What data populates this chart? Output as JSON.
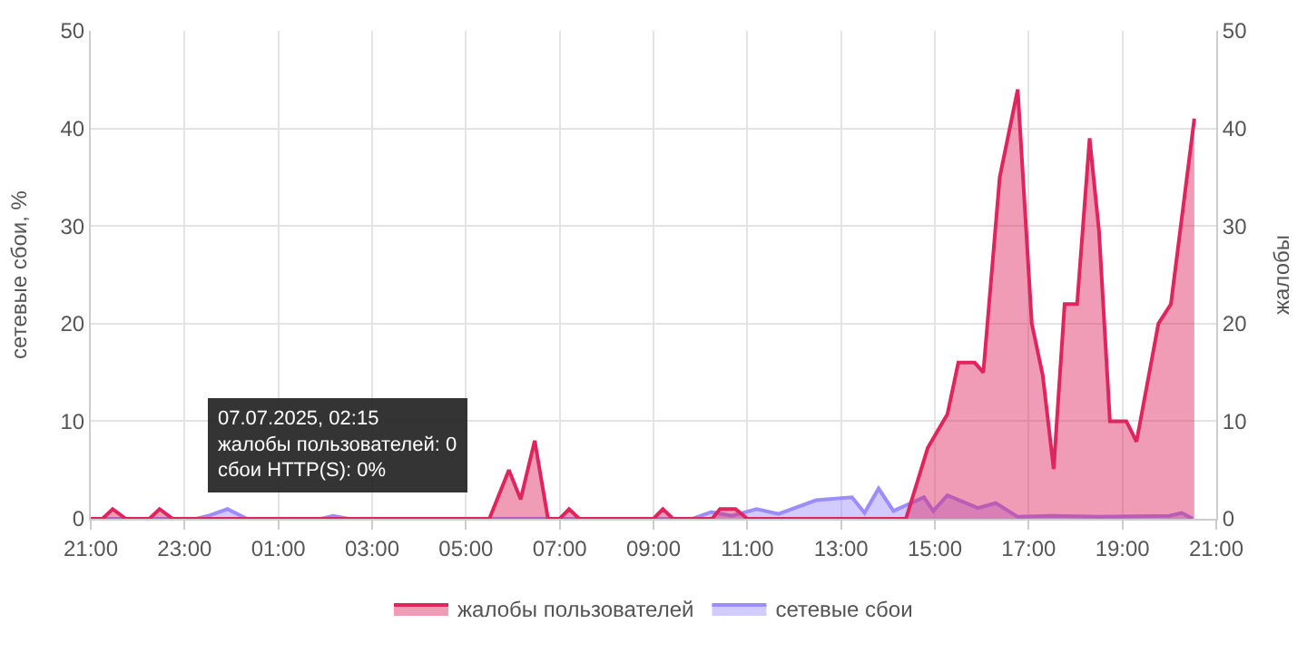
{
  "chart_data": {
    "type": "area",
    "ylabel": "сетевые сбои, %",
    "y2label": "жалобы",
    "xlim": [
      "2025-07-06T21:00",
      "2025-07-07T21:00"
    ],
    "xticks": [
      {
        "value": "2025-07-06T21:00",
        "label": "21:00"
      },
      {
        "value": "2025-07-06T23:00",
        "label": "23:00"
      },
      {
        "value": "2025-07-07T01:00",
        "label": "01:00"
      },
      {
        "value": "2025-07-07T03:00",
        "label": "03:00"
      },
      {
        "value": "2025-07-07T05:00",
        "label": "05:00"
      },
      {
        "value": "2025-07-07T07:00",
        "label": "07:00"
      },
      {
        "value": "2025-07-07T09:00",
        "label": "09:00"
      },
      {
        "value": "2025-07-07T11:00",
        "label": "11:00"
      },
      {
        "value": "2025-07-07T13:00",
        "label": "13:00"
      },
      {
        "value": "2025-07-07T15:00",
        "label": "15:00"
      },
      {
        "value": "2025-07-07T17:00",
        "label": "17:00"
      },
      {
        "value": "2025-07-07T19:00",
        "label": "19:00"
      },
      {
        "value": "2025-07-07T21:00",
        "label": "21:00"
      }
    ],
    "ylim": [
      0,
      50
    ],
    "yticks": [
      0,
      10,
      20,
      30,
      40,
      50
    ],
    "y2lim": [
      0,
      50
    ],
    "y2ticks": [
      0,
      10,
      20,
      30,
      40,
      50
    ],
    "grid": true,
    "legend": "bottom",
    "series": [
      {
        "name": "сетевые сбои",
        "color": "#9b8cff",
        "x": [
          "2025-07-06T21:00",
          "2025-07-06T23:15",
          "2025-07-06T23:30",
          "2025-07-06T23:55",
          "2025-07-07T00:20",
          "2025-07-07T01:55",
          "2025-07-07T02:10",
          "2025-07-07T02:30",
          "2025-07-07T09:50",
          "2025-07-07T10:14",
          "2025-07-07T10:40",
          "2025-07-07T11:12",
          "2025-07-07T11:40",
          "2025-07-07T12:28",
          "2025-07-07T13:14",
          "2025-07-07T13:30",
          "2025-07-07T13:48",
          "2025-07-07T14:07",
          "2025-07-07T14:46",
          "2025-07-07T14:58",
          "2025-07-07T15:16",
          "2025-07-07T15:55",
          "2025-07-07T16:18",
          "2025-07-07T16:46",
          "2025-07-07T17:30",
          "2025-07-07T18:30",
          "2025-07-07T20:00",
          "2025-07-07T20:16",
          "2025-07-07T20:30"
        ],
        "values": [
          0,
          0,
          0.3,
          1,
          0,
          0,
          0.3,
          0,
          0,
          0.7,
          0.3,
          1,
          0.5,
          1.9,
          2.2,
          0.6,
          3.1,
          0.8,
          2.2,
          0.8,
          2.4,
          1.1,
          1.6,
          0.2,
          0.3,
          0.2,
          0.3,
          0.6,
          0
        ]
      },
      {
        "name": "жалобы пользователей",
        "color": "#e0245e",
        "axis": "y2",
        "x": [
          "2025-07-06T21:00",
          "2025-07-06T21:15",
          "2025-07-06T21:28",
          "2025-07-06T21:45",
          "2025-07-06T22:15",
          "2025-07-06T22:28",
          "2025-07-06T22:45",
          "2025-07-07T05:30",
          "2025-07-07T05:55",
          "2025-07-07T06:10",
          "2025-07-07T06:28",
          "2025-07-07T06:45",
          "2025-07-07T07:00",
          "2025-07-07T07:12",
          "2025-07-07T07:25",
          "2025-07-07T09:00",
          "2025-07-07T09:12",
          "2025-07-07T09:25",
          "2025-07-07T10:15",
          "2025-07-07T10:25",
          "2025-07-07T10:45",
          "2025-07-07T11:00",
          "2025-07-07T14:23",
          "2025-07-07T14:51",
          "2025-07-07T15:16",
          "2025-07-07T15:30",
          "2025-07-07T15:51",
          "2025-07-07T16:02",
          "2025-07-07T16:23",
          "2025-07-07T16:46",
          "2025-07-07T17:04",
          "2025-07-07T17:18",
          "2025-07-07T17:32",
          "2025-07-07T17:46",
          "2025-07-07T18:02",
          "2025-07-07T18:18",
          "2025-07-07T18:30",
          "2025-07-07T18:44",
          "2025-07-07T19:05",
          "2025-07-07T19:18",
          "2025-07-07T19:46",
          "2025-07-07T20:02",
          "2025-07-07T20:32"
        ],
        "values": [
          0,
          0,
          1,
          0,
          0,
          1,
          0,
          0,
          5,
          2,
          8,
          0,
          0,
          1,
          0,
          0,
          1,
          0,
          0,
          1,
          1,
          0,
          0,
          7.3,
          10.7,
          16,
          16,
          15,
          35,
          44,
          20,
          14.7,
          5.1,
          22,
          22,
          39,
          29.5,
          10,
          10,
          7.9,
          20,
          22,
          41
        ]
      }
    ],
    "annotations": [
      {
        "text": "07.07.2025, 02:15\nжалобы пользователей: 0\nсбои HTTP(S): 0%",
        "x": "2025-07-07T02:15",
        "y": 0
      }
    ]
  }
}
